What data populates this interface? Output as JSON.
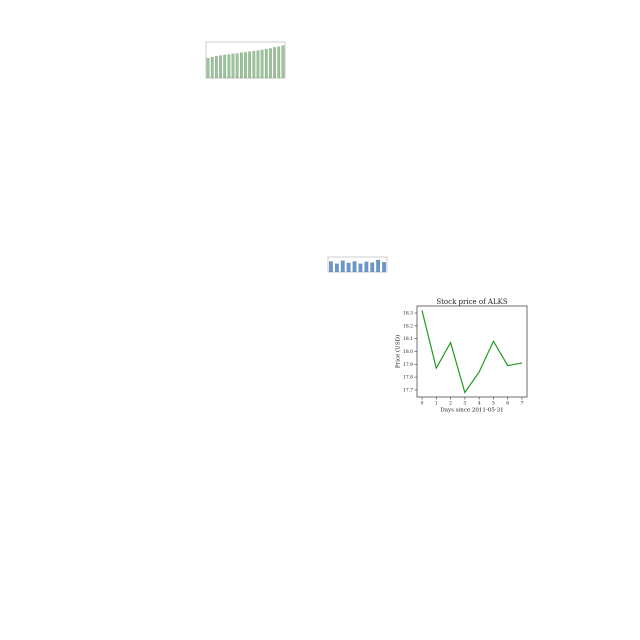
{
  "chart_data": [
    {
      "type": "bar",
      "color": "#9cc49a",
      "ylim": [
        0,
        1
      ],
      "values": [
        0.55,
        0.58,
        0.6,
        0.62,
        0.64,
        0.65,
        0.67,
        0.68,
        0.7,
        0.71,
        0.73,
        0.74,
        0.76,
        0.78,
        0.8,
        0.82,
        0.85,
        0.87,
        0.9
      ]
    },
    {
      "type": "bar",
      "color": "#6a95d4",
      "ylim": [
        0,
        1
      ],
      "values": [
        0.7,
        0.55,
        0.75,
        0.6,
        0.7,
        0.55,
        0.68,
        0.62,
        0.8,
        0.65
      ]
    },
    {
      "type": "line",
      "title": "Stock price of ALKS",
      "xlabel": "Days since 2011-05-31",
      "ylabel": "Price (USD)",
      "color": "#1f9a1f",
      "x": [
        0,
        1,
        2,
        3,
        4,
        5,
        6,
        7
      ],
      "values": [
        18.32,
        17.87,
        18.07,
        17.68,
        17.84,
        18.08,
        17.89,
        17.91
      ],
      "xlim": [
        -0.35,
        7.35
      ],
      "xticks": [
        0,
        1,
        2,
        3,
        4,
        5,
        6,
        7
      ],
      "ylim": [
        17.645,
        18.355
      ],
      "yticks": [
        17.7,
        17.8,
        17.9,
        {
          "value": 18.0,
          "label": "18.0"
        },
        18.1,
        18.2,
        18.3
      ]
    }
  ]
}
